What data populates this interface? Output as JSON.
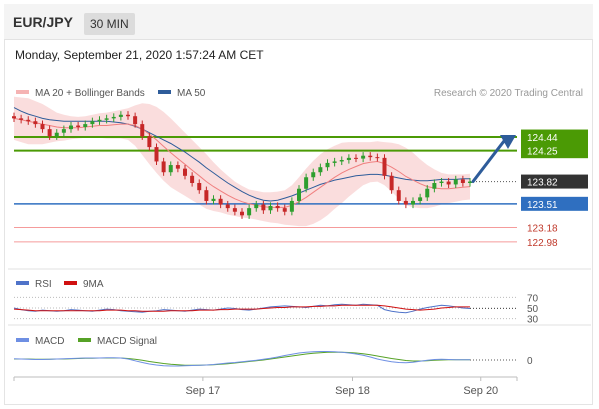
{
  "header": {
    "symbol": "EUR/JPY",
    "timeframe": "30 MIN",
    "datetime": "Monday, September 21, 2020 1:57:24 AM CET"
  },
  "colors": {
    "bollinger_band": "#f5b3b3",
    "ma20": "#f07f7f",
    "ma50": "#2e5c9a",
    "resistance": "#4b9a05",
    "support_blue": "#2f6fc0",
    "support_red": "#f59b9b",
    "candle_up": "#2e9e2e",
    "candle_down": "#c62828",
    "arrow": "#2e5c9a",
    "rsi": "#4f73c9",
    "rsi_ma": "#d01010",
    "macd": "#6e8fe3",
    "macd_signal": "#56a226"
  },
  "chart_data": [
    {
      "type": "line",
      "name": "price",
      "legend": [
        "MA 20 + Bollinger Bands",
        "MA 50"
      ],
      "source_note": "Research © 2020 Trading Central",
      "ylim": [
        122.7,
        124.9
      ],
      "x_ticks": [
        "Sep 17",
        "Sep 18",
        "Sep 20"
      ],
      "levels": [
        {
          "value": 124.44,
          "label": "124.44",
          "kind": "resistance"
        },
        {
          "value": 124.25,
          "label": "124.25",
          "kind": "resistance"
        },
        {
          "value": 123.82,
          "label": "123.82",
          "kind": "current"
        },
        {
          "value": 123.51,
          "label": "123.51",
          "kind": "support"
        },
        {
          "value": 123.18,
          "label": "123.18",
          "kind": "support"
        },
        {
          "value": 122.98,
          "label": "122.98",
          "kind": "support"
        }
      ],
      "close_series": [
        124.7,
        124.68,
        124.66,
        124.62,
        124.55,
        124.45,
        124.5,
        124.55,
        124.6,
        124.58,
        124.62,
        124.66,
        124.68,
        124.7,
        124.72,
        124.75,
        124.73,
        124.62,
        124.45,
        124.3,
        124.1,
        123.95,
        124.05,
        124.0,
        123.9,
        123.8,
        123.7,
        123.55,
        123.58,
        123.5,
        123.45,
        123.4,
        123.35,
        123.45,
        123.5,
        123.42,
        123.48,
        123.45,
        123.4,
        123.55,
        123.72,
        123.88,
        123.95,
        124.02,
        124.08,
        124.1,
        124.12,
        124.15,
        124.14,
        124.18,
        124.16,
        124.15,
        123.9,
        123.7,
        123.55,
        123.5,
        123.55,
        123.6,
        123.72,
        123.8,
        123.82,
        123.78,
        123.85,
        123.8,
        123.82
      ],
      "ma20_series": [
        124.7,
        124.68,
        124.66,
        124.64,
        124.62,
        124.6,
        124.58,
        124.57,
        124.57,
        124.57,
        124.58,
        124.59,
        124.6,
        124.6,
        124.61,
        124.62,
        124.62,
        124.6,
        124.55,
        124.48,
        124.4,
        124.31,
        124.22,
        124.14,
        124.06,
        123.98,
        123.9,
        123.82,
        123.75,
        123.69,
        123.63,
        123.58,
        123.54,
        123.51,
        123.49,
        123.47,
        123.46,
        123.46,
        123.46,
        123.49,
        123.54,
        123.6,
        123.67,
        123.74,
        123.81,
        123.88,
        123.94,
        123.99,
        124.03,
        124.07,
        124.09,
        124.1,
        124.07,
        124.02,
        123.96,
        123.89,
        123.84,
        123.79,
        123.75,
        123.73,
        123.72,
        123.72,
        123.73,
        123.74,
        123.75
      ],
      "ma50_series": [
        124.85,
        124.8,
        124.76,
        124.73,
        124.7,
        124.68,
        124.67,
        124.66,
        124.66,
        124.66,
        124.66,
        124.66,
        124.66,
        124.66,
        124.65,
        124.64,
        124.62,
        124.59,
        124.55,
        124.5,
        124.45,
        124.4,
        124.35,
        124.29,
        124.23,
        124.16,
        124.09,
        124.01,
        123.94,
        123.87,
        123.8,
        123.74,
        123.68,
        123.63,
        123.59,
        123.56,
        123.55,
        123.56,
        123.59,
        123.62,
        123.66,
        123.7,
        123.74,
        123.78,
        123.81,
        123.84,
        123.86,
        123.88,
        123.9,
        123.91,
        123.92,
        123.92,
        123.91,
        123.89,
        123.87,
        123.85,
        123.84,
        123.83,
        123.83,
        123.84,
        123.85,
        123.85,
        123.85,
        123.86,
        123.86
      ],
      "band_width_series": [
        0.3,
        0.31,
        0.32,
        0.3,
        0.28,
        0.24,
        0.2,
        0.18,
        0.16,
        0.15,
        0.15,
        0.16,
        0.17,
        0.18,
        0.19,
        0.2,
        0.22,
        0.28,
        0.36,
        0.42,
        0.46,
        0.48,
        0.48,
        0.46,
        0.44,
        0.42,
        0.4,
        0.38,
        0.34,
        0.3,
        0.27,
        0.24,
        0.22,
        0.2,
        0.2,
        0.2,
        0.21,
        0.22,
        0.24,
        0.28,
        0.34,
        0.4,
        0.44,
        0.46,
        0.46,
        0.44,
        0.42,
        0.38,
        0.34,
        0.3,
        0.28,
        0.28,
        0.3,
        0.34,
        0.38,
        0.4,
        0.38,
        0.34,
        0.3,
        0.26,
        0.22,
        0.2,
        0.19,
        0.18,
        0.18
      ]
    },
    {
      "type": "line",
      "name": "rsi",
      "legend": [
        "RSI",
        "9MA"
      ],
      "ylim": [
        20,
        80
      ],
      "y_ticks": [
        70,
        50,
        30
      ],
      "rsi_series": [
        50,
        47,
        45,
        44,
        46,
        45,
        44,
        45,
        47,
        46,
        45,
        44,
        46,
        48,
        47,
        45,
        44,
        43,
        42,
        44,
        45,
        47,
        46,
        45,
        44,
        46,
        48,
        47,
        46,
        48,
        50,
        49,
        47,
        46,
        48,
        50,
        52,
        53,
        54,
        53,
        52,
        51,
        53,
        55,
        54,
        56,
        57,
        56,
        55,
        57,
        56,
        55,
        47,
        44,
        42,
        41,
        44,
        48,
        51,
        53,
        55,
        54,
        52,
        50,
        49
      ],
      "ma9_series": [
        48,
        47,
        46,
        45,
        45,
        45,
        45,
        45,
        45,
        45,
        45,
        45,
        45,
        46,
        46,
        46,
        45,
        45,
        44,
        44,
        44,
        44,
        45,
        45,
        45,
        45,
        46,
        46,
        46,
        47,
        47,
        48,
        48,
        48,
        48,
        49,
        50,
        51,
        51,
        52,
        52,
        52,
        53,
        53,
        54,
        54,
        55,
        55,
        55,
        55,
        55,
        55,
        54,
        52,
        50,
        48,
        47,
        46,
        47,
        48,
        50,
        51,
        52,
        52,
        52
      ]
    },
    {
      "type": "line",
      "name": "macd",
      "legend": [
        "MACD",
        "MACD Signal"
      ],
      "ylim": [
        -0.6,
        0.6
      ],
      "y_ticks": [
        0
      ],
      "macd_series": [
        0.05,
        0.04,
        0.03,
        0.02,
        0.02,
        0.03,
        0.04,
        0.05,
        0.06,
        0.07,
        0.08,
        0.08,
        0.08,
        0.09,
        0.09,
        0.08,
        0.04,
        -0.03,
        -0.1,
        -0.16,
        -0.2,
        -0.23,
        -0.24,
        -0.24,
        -0.23,
        -0.22,
        -0.21,
        -0.2,
        -0.18,
        -0.15,
        -0.12,
        -0.1,
        -0.07,
        -0.04,
        -0.01,
        0.03,
        0.07,
        0.12,
        0.18,
        0.23,
        0.28,
        0.31,
        0.33,
        0.34,
        0.34,
        0.33,
        0.31,
        0.28,
        0.24,
        0.19,
        0.12,
        0.04,
        -0.02,
        -0.07,
        -0.1,
        -0.11,
        -0.09,
        -0.05,
        -0.01,
        0.02,
        0.03,
        0.02,
        0.01,
        0.01,
        0.01
      ],
      "signal_series": [
        0.04,
        0.04,
        0.04,
        0.03,
        0.03,
        0.03,
        0.04,
        0.04,
        0.05,
        0.06,
        0.07,
        0.07,
        0.08,
        0.08,
        0.08,
        0.08,
        0.06,
        0.03,
        -0.01,
        -0.06,
        -0.1,
        -0.14,
        -0.17,
        -0.19,
        -0.21,
        -0.21,
        -0.21,
        -0.2,
        -0.19,
        -0.17,
        -0.15,
        -0.12,
        -0.09,
        -0.06,
        -0.03,
        0.0,
        0.04,
        0.08,
        0.12,
        0.16,
        0.2,
        0.24,
        0.27,
        0.29,
        0.31,
        0.31,
        0.31,
        0.3,
        0.28,
        0.25,
        0.21,
        0.16,
        0.11,
        0.06,
        0.02,
        -0.02,
        -0.04,
        -0.04,
        -0.03,
        -0.01,
        0.0,
        0.01,
        0.01,
        0.01,
        0.01
      ]
    }
  ]
}
